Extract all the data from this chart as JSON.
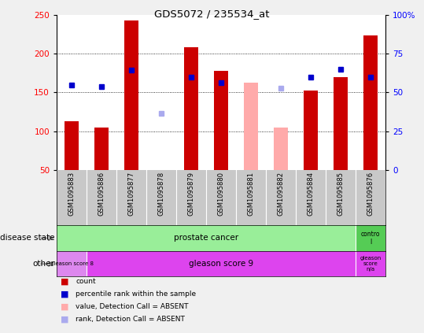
{
  "title": "GDS5072 / 235534_at",
  "samples": [
    "GSM1095883",
    "GSM1095886",
    "GSM1095877",
    "GSM1095878",
    "GSM1095879",
    "GSM1095880",
    "GSM1095881",
    "GSM1095882",
    "GSM1095884",
    "GSM1095885",
    "GSM1095876"
  ],
  "counts": [
    113,
    105,
    243,
    null,
    208,
    178,
    null,
    null,
    152,
    170,
    224
  ],
  "counts_absent": [
    null,
    null,
    null,
    null,
    null,
    null,
    163,
    105,
    null,
    null,
    null
  ],
  "pct_ranks": [
    160,
    158,
    179,
    null,
    170,
    163,
    null,
    null,
    170,
    180,
    170
  ],
  "pct_ranks_absent": [
    null,
    null,
    null,
    123,
    null,
    null,
    null,
    155,
    null,
    null,
    null
  ],
  "ylim_left": [
    50,
    250
  ],
  "yticks_left": [
    50,
    100,
    150,
    200,
    250
  ],
  "ytick_labels_right": [
    "0",
    "25",
    "50",
    "75",
    "100%"
  ],
  "bar_color_red": "#cc0000",
  "bar_color_pink": "#ffaaaa",
  "dot_color_blue": "#0000cc",
  "dot_color_lightblue": "#aaaaee",
  "disease_state_group_label": "disease state",
  "other_group_label": "other",
  "prostate_cancer_color": "#99ee99",
  "control_color": "#55cc55",
  "gleason8_color": "#dd88ee",
  "gleason9_color": "#dd44ee",
  "legend_items": [
    {
      "label": "count",
      "color": "#cc0000"
    },
    {
      "label": "percentile rank within the sample",
      "color": "#0000cc"
    },
    {
      "label": "value, Detection Call = ABSENT",
      "color": "#ffaaaa"
    },
    {
      "label": "rank, Detection Call = ABSENT",
      "color": "#aaaaee"
    }
  ],
  "fig_bg": "#f0f0f0"
}
